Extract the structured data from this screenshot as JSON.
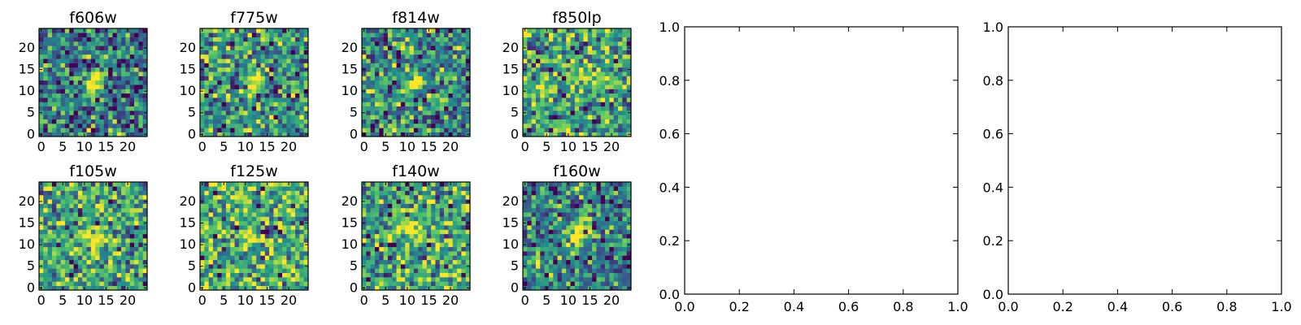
{
  "chart_data": [
    {
      "type": "heatmap",
      "panels": [
        {
          "title": "f606w",
          "xticks": [
            0,
            5,
            10,
            15,
            20
          ],
          "yticks": [
            0,
            5,
            10,
            15,
            20
          ],
          "xlim": [
            0,
            24
          ],
          "ylim": [
            0,
            24
          ],
          "grid_size": 25,
          "source_center": [
            12,
            12
          ],
          "source_strength": 0.9,
          "noise_mean": 0.4
        },
        {
          "title": "f775w",
          "xticks": [
            0,
            5,
            10,
            15,
            20
          ],
          "yticks": [
            0,
            5,
            10,
            15,
            20
          ],
          "xlim": [
            0,
            24
          ],
          "ylim": [
            0,
            24
          ],
          "grid_size": 25,
          "source_center": [
            12,
            12
          ],
          "source_strength": 0.5,
          "noise_mean": 0.55
        },
        {
          "title": "f814w",
          "xticks": [
            0,
            5,
            10,
            15,
            20
          ],
          "yticks": [
            0,
            5,
            10,
            15,
            20
          ],
          "xlim": [
            0,
            24
          ],
          "ylim": [
            0,
            24
          ],
          "grid_size": 25,
          "source_center": [
            12,
            12
          ],
          "source_strength": 0.55,
          "noise_mean": 0.5
        },
        {
          "title": "f850lp",
          "xticks": [
            0,
            5,
            10,
            15,
            20
          ],
          "yticks": [
            0,
            5,
            10,
            15,
            20
          ],
          "xlim": [
            0,
            24
          ],
          "ylim": [
            0,
            24
          ],
          "grid_size": 25,
          "source_center": [
            12,
            12
          ],
          "source_strength": 0.2,
          "noise_mean": 0.6
        },
        {
          "title": "f105w",
          "xticks": [
            0,
            5,
            10,
            15,
            20
          ],
          "yticks": [
            0,
            5,
            10,
            15,
            20
          ],
          "xlim": [
            0,
            24
          ],
          "ylim": [
            0,
            24
          ],
          "grid_size": 25,
          "source_center": [
            12,
            12
          ],
          "source_strength": 0.5,
          "noise_mean": 0.62
        },
        {
          "title": "f125w",
          "xticks": [
            0,
            5,
            10,
            15,
            20
          ],
          "yticks": [
            0,
            5,
            10,
            15,
            20
          ],
          "xlim": [
            0,
            24
          ],
          "ylim": [
            0,
            24
          ],
          "grid_size": 25,
          "source_center": [
            11,
            12
          ],
          "source_strength": 0.45,
          "noise_mean": 0.65
        },
        {
          "title": "f140w",
          "xticks": [
            0,
            5,
            10,
            15,
            20
          ],
          "yticks": [
            0,
            5,
            10,
            15,
            20
          ],
          "xlim": [
            0,
            24
          ],
          "ylim": [
            0,
            24
          ],
          "grid_size": 25,
          "source_center": [
            12,
            13
          ],
          "source_strength": 0.5,
          "noise_mean": 0.6
        },
        {
          "title": "f160w",
          "xticks": [
            0,
            5,
            10,
            15,
            20
          ],
          "yticks": [
            0,
            5,
            10,
            15,
            20
          ],
          "xlim": [
            0,
            24
          ],
          "ylim": [
            0,
            24
          ],
          "grid_size": 25,
          "source_center": [
            12,
            12
          ],
          "source_strength": 0.75,
          "noise_mean": 0.45
        }
      ],
      "colormap": "viridis",
      "colormap_stops": [
        "#440154",
        "#3b528b",
        "#21918c",
        "#5ec962",
        "#fde725"
      ]
    },
    {
      "type": "scatter",
      "empty": true,
      "xlim": [
        0.0,
        1.0
      ],
      "ylim": [
        0.0,
        1.0
      ],
      "xticks": [
        "0.0",
        "0.2",
        "0.4",
        "0.6",
        "0.8",
        "1.0"
      ],
      "yticks": [
        "0.0",
        "0.2",
        "0.4",
        "0.6",
        "0.8",
        "1.0"
      ]
    },
    {
      "type": "scatter",
      "empty": true,
      "xlim": [
        0.0,
        1.0
      ],
      "ylim": [
        0.0,
        1.0
      ],
      "xticks": [
        "0.0",
        "0.2",
        "0.4",
        "0.6",
        "0.8",
        "1.0"
      ],
      "yticks": [
        "0.0",
        "0.2",
        "0.4",
        "0.6",
        "0.8",
        "1.0"
      ]
    }
  ]
}
